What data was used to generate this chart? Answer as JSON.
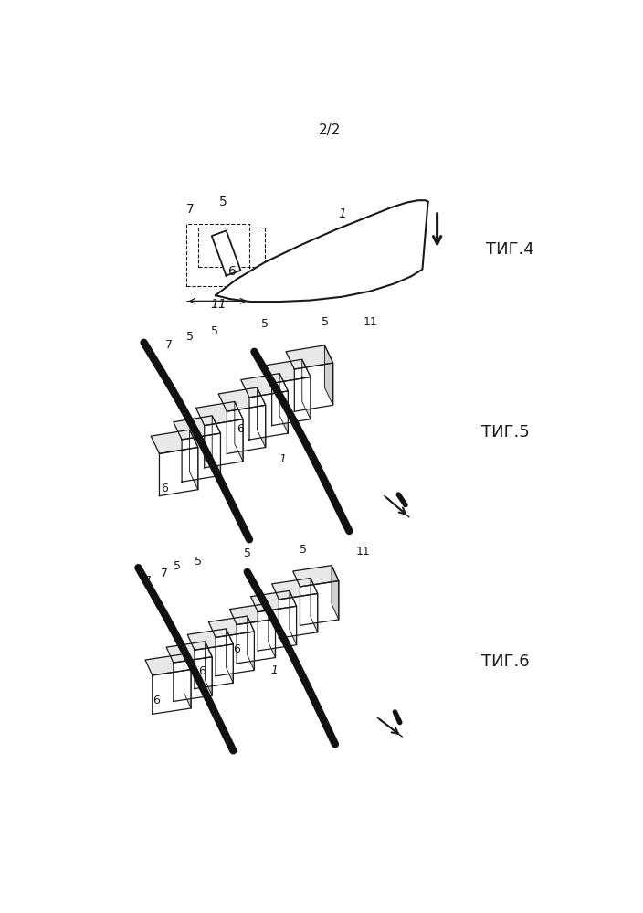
{
  "page_label": "2/2",
  "fig4_label": "ΤИГ.4",
  "fig5_label": "ΤИГ.5",
  "fig6_label": "ΤИГ.6",
  "background_color": "#ffffff",
  "line_color": "#1a1a1a",
  "fig_label_fontsize": 13,
  "page_label_fontsize": 11
}
